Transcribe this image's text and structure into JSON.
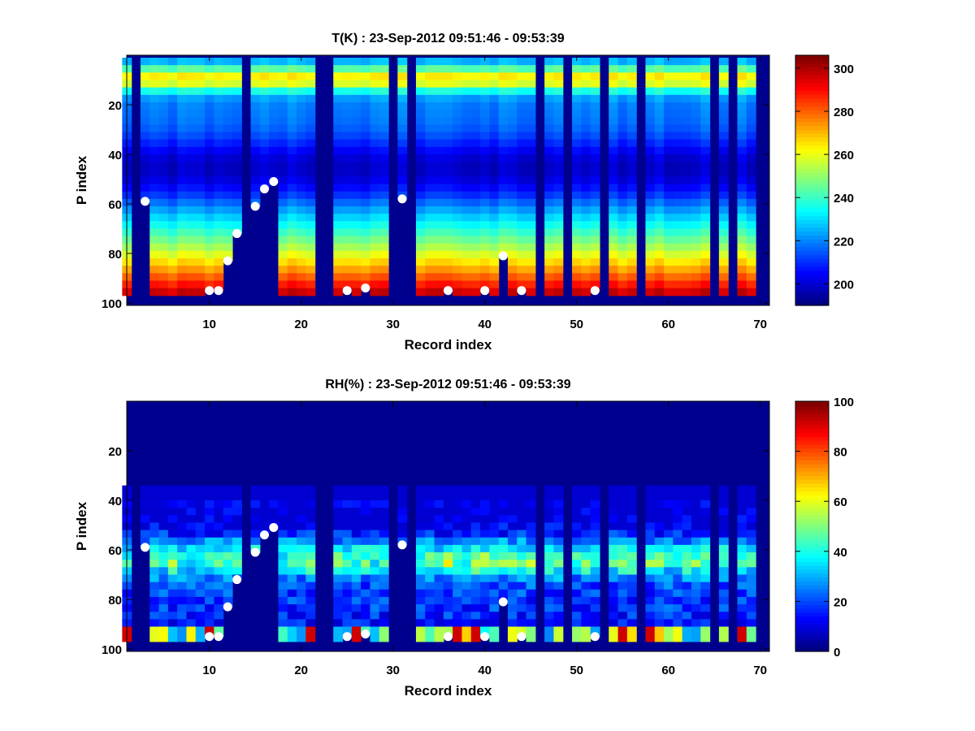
{
  "chart_data": [
    {
      "type": "heatmap",
      "title": "T(K) : 23-Sep-2012 09:51:46 - 09:53:39",
      "xlabel": "Record index",
      "ylabel": "P index",
      "x_range": [
        1,
        71
      ],
      "y_range": [
        0,
        101
      ],
      "y_reversed": true,
      "x_ticks": [
        "10",
        "20",
        "30",
        "40",
        "50",
        "60",
        "70"
      ],
      "y_ticks": [
        "20",
        "40",
        "60",
        "80",
        "100"
      ],
      "color_range": [
        190,
        306
      ],
      "colorbar_ticks": [
        "200",
        "220",
        "240",
        "260",
        "280",
        "300"
      ],
      "colormap": "jet",
      "masked_records": [
        2,
        14,
        22,
        23,
        30,
        32,
        46,
        49,
        53,
        57,
        65,
        67,
        70
      ],
      "bottom_level_series": [
        {
          "x": 1,
          "y": 97
        },
        {
          "x": 2,
          "y": 97
        },
        {
          "x": 3,
          "y": 59
        },
        {
          "x": 4,
          "y": 97
        },
        {
          "x": 5,
          "y": 97
        },
        {
          "x": 6,
          "y": 97
        },
        {
          "x": 7,
          "y": 97
        },
        {
          "x": 8,
          "y": 97
        },
        {
          "x": 9,
          "y": 97
        },
        {
          "x": 10,
          "y": 95
        },
        {
          "x": 11,
          "y": 95
        },
        {
          "x": 12,
          "y": 83
        },
        {
          "x": 13,
          "y": 72
        },
        {
          "x": 14,
          "y": 97
        },
        {
          "x": 15,
          "y": 61
        },
        {
          "x": 16,
          "y": 54
        },
        {
          "x": 17,
          "y": 51
        },
        {
          "x": 18,
          "y": 97
        },
        {
          "x": 19,
          "y": 97
        },
        {
          "x": 20,
          "y": 97
        },
        {
          "x": 21,
          "y": 97
        },
        {
          "x": 24,
          "y": 97
        },
        {
          "x": 25,
          "y": 95
        },
        {
          "x": 26,
          "y": 97
        },
        {
          "x": 27,
          "y": 94
        },
        {
          "x": 28,
          "y": 97
        },
        {
          "x": 29,
          "y": 97
        },
        {
          "x": 31,
          "y": 58
        },
        {
          "x": 33,
          "y": 97
        },
        {
          "x": 34,
          "y": 97
        },
        {
          "x": 35,
          "y": 97
        },
        {
          "x": 36,
          "y": 95
        },
        {
          "x": 37,
          "y": 97
        },
        {
          "x": 38,
          "y": 97
        },
        {
          "x": 39,
          "y": 97
        },
        {
          "x": 40,
          "y": 95
        },
        {
          "x": 41,
          "y": 97
        },
        {
          "x": 42,
          "y": 81
        },
        {
          "x": 43,
          "y": 97
        },
        {
          "x": 44,
          "y": 95
        },
        {
          "x": 45,
          "y": 97
        },
        {
          "x": 52,
          "y": 95
        }
      ],
      "markers": [
        {
          "x": 3,
          "y": 59
        },
        {
          "x": 10,
          "y": 95
        },
        {
          "x": 11,
          "y": 95
        },
        {
          "x": 12,
          "y": 83
        },
        {
          "x": 13,
          "y": 72
        },
        {
          "x": 15,
          "y": 61
        },
        {
          "x": 16,
          "y": 54
        },
        {
          "x": 17,
          "y": 51
        },
        {
          "x": 25,
          "y": 95
        },
        {
          "x": 27,
          "y": 94
        },
        {
          "x": 31,
          "y": 58
        },
        {
          "x": 36,
          "y": 95
        },
        {
          "x": 40,
          "y": 95
        },
        {
          "x": 42,
          "y": 81
        },
        {
          "x": 44,
          "y": 95
        },
        {
          "x": 52,
          "y": 95
        }
      ]
    },
    {
      "type": "heatmap",
      "title": "RH(%) : 23-Sep-2012 09:51:46 - 09:53:39",
      "xlabel": "Record index",
      "ylabel": "P index",
      "x_range": [
        1,
        71
      ],
      "y_range": [
        0,
        101
      ],
      "y_reversed": true,
      "x_ticks": [
        "10",
        "20",
        "30",
        "40",
        "50",
        "60",
        "70"
      ],
      "y_ticks": [
        "20",
        "40",
        "60",
        "80",
        "100"
      ],
      "color_range": [
        0,
        100
      ],
      "colorbar_ticks": [
        "0",
        "20",
        "40",
        "60",
        "80",
        "100"
      ],
      "colormap": "jet",
      "masked_records": [
        2,
        14,
        22,
        23,
        30,
        32,
        46,
        49,
        53,
        57,
        65,
        67,
        70
      ],
      "markers": [
        {
          "x": 3,
          "y": 59
        },
        {
          "x": 10,
          "y": 95
        },
        {
          "x": 11,
          "y": 95
        },
        {
          "x": 12,
          "y": 83
        },
        {
          "x": 13,
          "y": 72
        },
        {
          "x": 15,
          "y": 61
        },
        {
          "x": 16,
          "y": 54
        },
        {
          "x": 17,
          "y": 51
        },
        {
          "x": 25,
          "y": 95
        },
        {
          "x": 27,
          "y": 94
        },
        {
          "x": 31,
          "y": 58
        },
        {
          "x": 36,
          "y": 95
        },
        {
          "x": 40,
          "y": 95
        },
        {
          "x": 42,
          "y": 81
        },
        {
          "x": 44,
          "y": 95
        },
        {
          "x": 52,
          "y": 95
        }
      ]
    }
  ]
}
